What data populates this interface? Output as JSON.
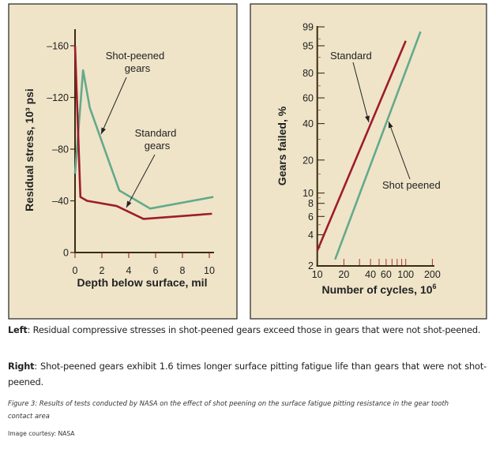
{
  "colors": {
    "panel_bg": "#efe4c8",
    "axis": "#3b2c12",
    "standard": "#9e1c2c",
    "shot_peened": "#64a98c",
    "tick_red": "#b03040"
  },
  "chart_data": [
    {
      "type": "line",
      "xlabel": "Depth below surface, mil",
      "ylabel": "Residual stress, 10³ psi",
      "xlim": [
        0,
        10.5
      ],
      "ylim": [
        0,
        -175
      ],
      "x_ticks": [
        0,
        2,
        4,
        6,
        8,
        10
      ],
      "x_tick_labels": [
        "0",
        "2",
        "4",
        "6",
        "8",
        "10"
      ],
      "y_ticks": [
        0,
        -40,
        -80,
        -120,
        -160
      ],
      "y_tick_labels": [
        "0",
        "–40",
        "–80",
        "–120",
        "–160"
      ],
      "grid": false,
      "series": [
        {
          "name": "Shot-peened gears",
          "color": "#64a98c",
          "x": [
            0,
            0.6,
            1.1,
            3.3,
            5.6,
            10.3
          ],
          "y": [
            -61,
            -141,
            -112,
            -48,
            -34,
            -43
          ]
        },
        {
          "name": "Standard gears",
          "color": "#9e1c2c",
          "x": [
            0,
            0.4,
            0.9,
            3.1,
            5.1,
            10.2
          ],
          "y": [
            -160,
            -43,
            -40,
            -36,
            -26,
            -30
          ]
        }
      ],
      "annotations": [
        {
          "text": [
            "Shot-peened",
            "gears"
          ],
          "points_to": "Shot-peened gears"
        },
        {
          "text": [
            "Standard",
            "gears"
          ],
          "points_to": "Standard gears"
        }
      ]
    },
    {
      "type": "line",
      "xlabel": "Number of cycles, 10",
      "xlabel_sup": "6",
      "ylabel": "Gears failed, %",
      "xscale": "log",
      "yscale": "weibull probability",
      "xlim": [
        10,
        200
      ],
      "ylim": [
        2,
        99
      ],
      "x_tick_labels": [
        "10",
        "20",
        "40",
        "60",
        "100",
        "200"
      ],
      "x_tick_values": [
        10,
        20,
        40,
        60,
        100,
        200
      ],
      "x_minor_ticks": [
        20,
        30,
        40,
        50,
        60,
        70,
        80,
        90,
        100,
        200
      ],
      "y_ticks": [
        2,
        4,
        6,
        8,
        10,
        20,
        40,
        60,
        80,
        95,
        99
      ],
      "y_tick_labels": [
        "2",
        "4",
        "6",
        "8",
        "10",
        "20",
        "40",
        "60",
        "80",
        "95",
        "99"
      ],
      "grid": false,
      "series": [
        {
          "name": "Standard",
          "color": "#9e1c2c",
          "x": [
            10,
            100
          ],
          "y": [
            2.8,
            96.5
          ]
        },
        {
          "name": "Shot peened",
          "color": "#64a98c",
          "x": [
            15.9,
            147
          ],
          "y": [
            2.3,
            98.4
          ]
        }
      ],
      "annotations": [
        {
          "text": [
            "Standard"
          ],
          "points_to": "Standard"
        },
        {
          "text": [
            "Shot peened"
          ],
          "points_to": "Shot peened"
        }
      ]
    }
  ],
  "captions": {
    "left_label": "Left",
    "left_text": ": Residual compressive stresses in shot-peened gears exceed those in gears that were not shot-peened.",
    "right_label": "Right",
    "right_text": ": Shot-peened gears exhibit 1.6 times longer surface pitting fatigue life than gears that were not shot-peened.",
    "figure": "Figure 3: Results of tests conducted by NASA on the effect of shot peening on the surface fatigue pitting resistance in the gear tooth contact area",
    "credit": "Image courtesy: NASA"
  }
}
